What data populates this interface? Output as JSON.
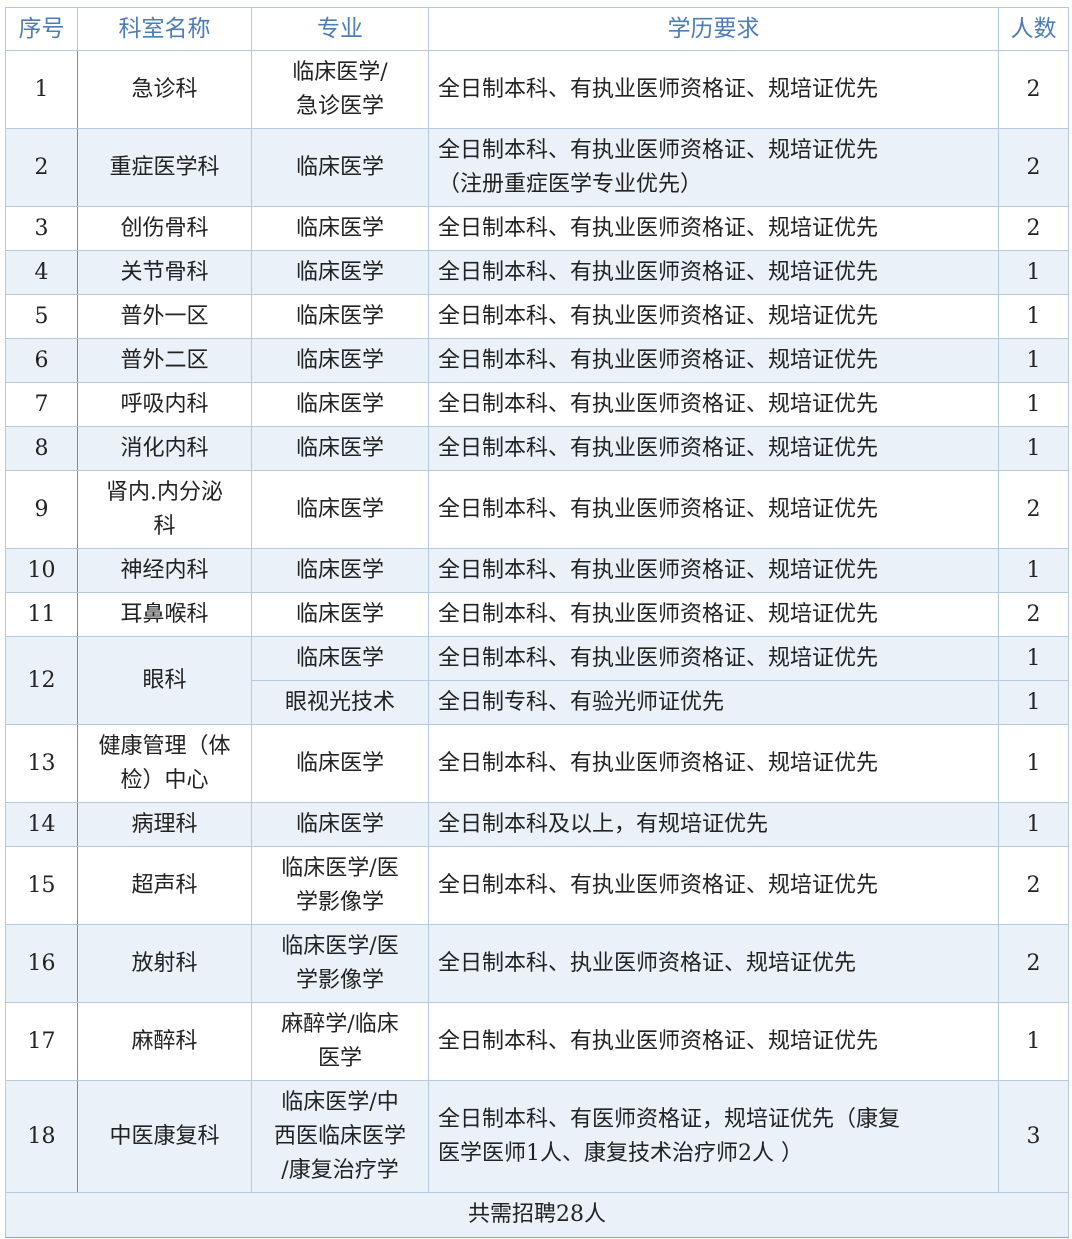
{
  "headers": [
    "序号",
    "科室名称",
    "专业",
    "学历要求",
    "人数"
  ],
  "rows": [
    {
      "no": "1",
      "dept": "急诊科",
      "major": "临床医学/\n急诊医学",
      "req": "全日制本科、有执业医师资格证、规培证优先",
      "count": "2",
      "lines": 2
    },
    {
      "no": "2",
      "dept": "重症医学科",
      "major": "临床医学",
      "req": "全日制本科、有执业医师资格证、规培证优先\n（注册重症医学专业优先）",
      "count": "2",
      "lines": 2
    },
    {
      "no": "3",
      "dept": "创伤骨科",
      "major": "临床医学",
      "req": "全日制本科、有执业医师资格证、规培证优先",
      "count": "2",
      "lines": 1
    },
    {
      "no": "4",
      "dept": "关节骨科",
      "major": "临床医学",
      "req": "全日制本科、有执业医师资格证、规培证优先",
      "count": "1",
      "lines": 1
    },
    {
      "no": "5",
      "dept": "普外一区",
      "major": "临床医学",
      "req": "全日制本科、有执业医师资格证、规培证优先",
      "count": "1",
      "lines": 1
    },
    {
      "no": "6",
      "dept": "普外二区",
      "major": "临床医学",
      "req": "全日制本科、有执业医师资格证、规培证优先",
      "count": "1",
      "lines": 1
    },
    {
      "no": "7",
      "dept": "呼吸内科",
      "major": "临床医学",
      "req": "全日制本科、有执业医师资格证、规培证优先",
      "count": "1",
      "lines": 1
    },
    {
      "no": "8",
      "dept": "消化内科",
      "major": "临床医学",
      "req": "全日制本科、有执业医师资格证、规培证优先",
      "count": "1",
      "lines": 1
    },
    {
      "no": "9",
      "dept": "肾内.内分泌\n科",
      "major": "临床医学",
      "req": "全日制本科、有执业医师资格证、规培证优先",
      "count": "2",
      "lines": 2
    },
    {
      "no": "10",
      "dept": "神经内科",
      "major": "临床医学",
      "req": "全日制本科、有执业医师资格证、规培证优先",
      "count": "1",
      "lines": 1
    },
    {
      "no": "11",
      "dept": "耳鼻喉科",
      "major": "临床医学",
      "req": "全日制本科、有执业医师资格证、规培证优先",
      "count": "2",
      "lines": 1
    },
    {
      "no": "12",
      "dept": "眼科",
      "sub": [
        {
          "major": "临床医学",
          "req": "全日制本科、有执业医师资格证、规培证优先",
          "count": "1"
        },
        {
          "major": "眼视光技术",
          "req": "全日制专科、有验光师证优先",
          "count": "1"
        }
      ]
    },
    {
      "no": "13",
      "dept": "健康管理（体\n检）中心",
      "major": "临床医学",
      "req": "全日制本科、有执业医师资格证、规培证优先",
      "count": "1",
      "lines": 2
    },
    {
      "no": "14",
      "dept": "病理科",
      "major": "临床医学",
      "req": "全日制本科及以上，有规培证优先",
      "count": "1",
      "lines": 1
    },
    {
      "no": "15",
      "dept": "超声科",
      "major": "临床医学/医\n学影像学",
      "req": "全日制本科、有执业医师资格证、规培证优先",
      "count": "2",
      "lines": 2
    },
    {
      "no": "16",
      "dept": "放射科",
      "major": "临床医学/医\n学影像学",
      "req": "全日制本科、执业医师资格证、规培证优先",
      "count": "2",
      "lines": 2
    },
    {
      "no": "17",
      "dept": "麻醉科",
      "major": "麻醉学/临床\n医学",
      "req": "全日制本科、有执业医师资格证、规培证优先",
      "count": "1",
      "lines": 2
    },
    {
      "no": "18",
      "dept": "中医康复科",
      "major": "临床医学/中\n西医临床医学\n/康复治疗学",
      "req": "全日制本科、有医师资格证，规培证优先（康复\n医学医师1人、康复技术治疗师2人 ）",
      "count": "3",
      "lines": 3
    }
  ],
  "total": "共需招聘28人",
  "colors": {
    "header_text": "#4e7db4",
    "border": "#b4c9e0",
    "shade": "#ebf1f8"
  }
}
